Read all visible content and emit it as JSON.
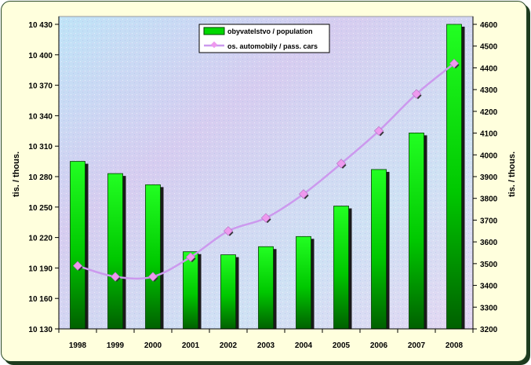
{
  "chart_data": {
    "type": "bar+line",
    "categories": [
      "1998",
      "1999",
      "2000",
      "2001",
      "2002",
      "2003",
      "2004",
      "2005",
      "2006",
      "2007",
      "2008"
    ],
    "series": [
      {
        "name": "obyvatelstvo / population",
        "type": "bar",
        "axis": "left",
        "color": "#00dd00",
        "values": [
          10295,
          10283,
          10272,
          10206,
          10203,
          10211,
          10221,
          10251,
          10287,
          10323,
          10430
        ]
      },
      {
        "name": "os. automobily / pass. cars",
        "type": "line",
        "axis": "right",
        "color": "#cc99ee",
        "marker_color": "#ee99ee",
        "values": [
          3490,
          3440,
          3440,
          3530,
          3650,
          3710,
          3820,
          3960,
          4110,
          4280,
          4420
        ]
      }
    ],
    "y_left": {
      "label": "tis. / thous.",
      "lim": [
        10130,
        10430
      ],
      "ticks": [
        10130,
        10160,
        10190,
        10220,
        10250,
        10280,
        10310,
        10340,
        10370,
        10400,
        10430
      ],
      "tick_labels": [
        "10 130",
        "10 160",
        "10 190",
        "10 220",
        "10 250",
        "10 280",
        "10 310",
        "10 340",
        "10 370",
        "10 400",
        "10 430"
      ]
    },
    "y_right": {
      "label": "tis. / thous.",
      "lim": [
        3200,
        4600
      ],
      "ticks": [
        3200,
        3300,
        3400,
        3500,
        3600,
        3700,
        3800,
        3900,
        4000,
        4100,
        4200,
        4300,
        4400,
        4500,
        4600
      ],
      "tick_labels": [
        "3200",
        "3300",
        "3400",
        "3500",
        "3600",
        "3700",
        "3800",
        "3900",
        "4000",
        "4100",
        "4200",
        "4300",
        "4400",
        "4500",
        "4600"
      ]
    },
    "legend_position": "top-center",
    "grid": false
  }
}
